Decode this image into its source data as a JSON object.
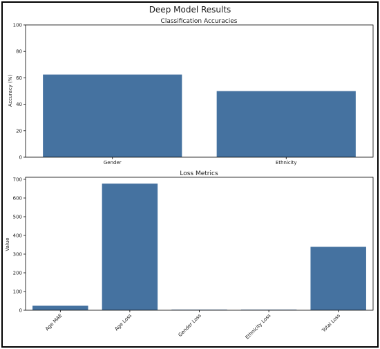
{
  "figure": {
    "title": "Deep Model Results"
  },
  "chart_data": [
    {
      "type": "bar",
      "title": "Classification Accuracies",
      "xlabel": "",
      "ylabel": "Accuracy (%)",
      "categories": [
        "Gender",
        "Ethnicity"
      ],
      "values": [
        62.5,
        50.0
      ],
      "ylim": [
        0,
        100
      ],
      "yticks": [
        0,
        20,
        40,
        60,
        80,
        100
      ],
      "bar_color": "#4572a0",
      "grid": false
    },
    {
      "type": "bar",
      "title": "Loss Metrics",
      "xlabel": "",
      "ylabel": "Value",
      "categories": [
        "Age MAE",
        "Age Loss",
        "Gender Loss",
        "Ethnicity Loss",
        "Total Loss"
      ],
      "values": [
        24,
        677,
        0.7,
        1.0,
        339
      ],
      "ylim": [
        0,
        711
      ],
      "yticks": [
        0,
        100,
        200,
        300,
        400,
        500,
        600,
        700
      ],
      "bar_color": "#4572a0",
      "grid": false
    }
  ]
}
